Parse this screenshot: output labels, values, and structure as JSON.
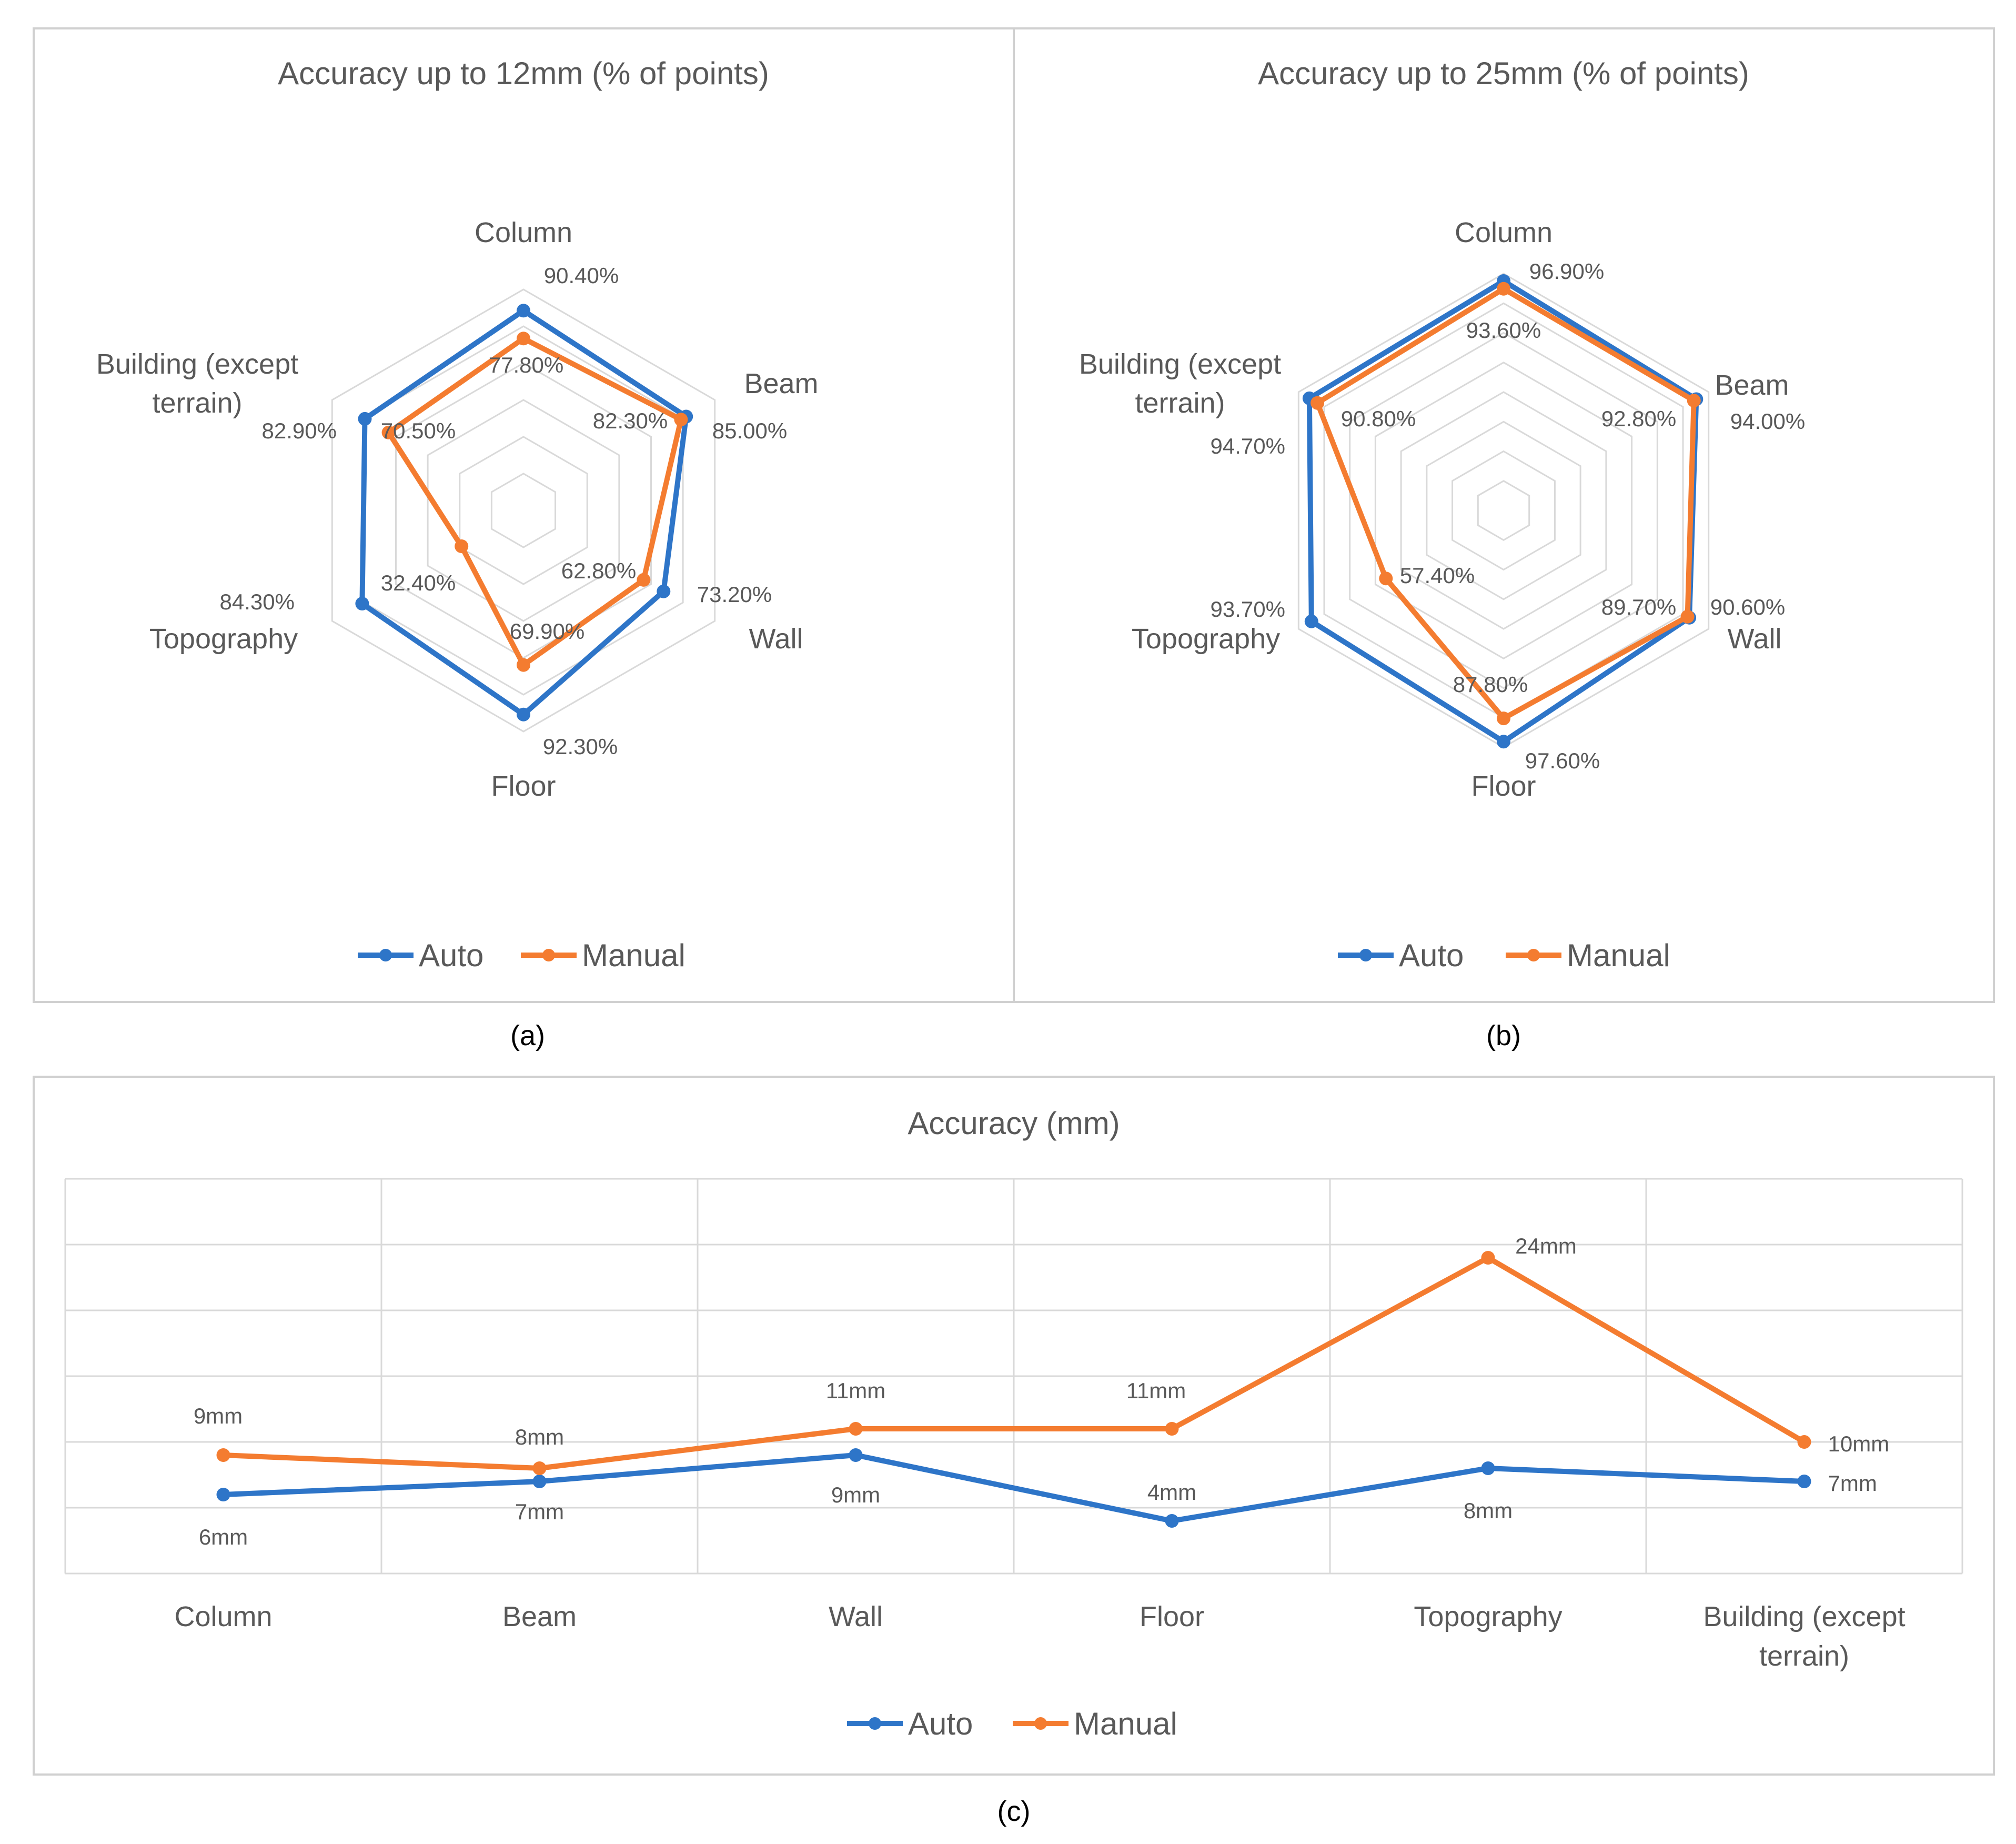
{
  "colors": {
    "auto": "#2E75C8",
    "manual": "#F47C30",
    "grid": "#D9D9D9",
    "frame": "#D0D0D0",
    "text": "#595959",
    "caption": "#000000"
  },
  "chart_data": [
    {
      "id": "a",
      "type": "radar",
      "title": "Accuracy up to 12mm (% of points)",
      "caption": "(a)",
      "categories": [
        "Column",
        "Beam",
        "Wall",
        "Floor",
        "Topography",
        "Building (except terrain)"
      ],
      "category_lines": [
        [
          "Column"
        ],
        [
          "Beam"
        ],
        [
          "Wall"
        ],
        [
          "Floor"
        ],
        [
          "Topography"
        ],
        [
          "Building (except",
          "terrain)"
        ]
      ],
      "rmin": 0,
      "rmax": 100,
      "grid_rings": 6,
      "legend_position": "bottom",
      "series": [
        {
          "name": "Auto",
          "values": [
            90.4,
            85.0,
            73.2,
            92.3,
            84.3,
            82.9
          ],
          "labels": [
            "90.40%",
            "85.00%",
            "73.20%",
            "92.30%",
            "84.30%",
            "82.90%"
          ]
        },
        {
          "name": "Manual",
          "values": [
            77.8,
            82.3,
            62.8,
            69.9,
            32.4,
            70.5
          ],
          "labels": [
            "77.80%",
            "82.30%",
            "62.80%",
            "69.90%",
            "32.40%",
            "70.50%"
          ]
        }
      ]
    },
    {
      "id": "b",
      "type": "radar",
      "title": "Accuracy up to 25mm (% of points)",
      "caption": "(b)",
      "categories": [
        "Column",
        "Beam",
        "Wall",
        "Floor",
        "Topography",
        "Building (except terrain)"
      ],
      "category_lines": [
        [
          "Column"
        ],
        [
          "Beam"
        ],
        [
          "Wall"
        ],
        [
          "Floor"
        ],
        [
          "Topography"
        ],
        [
          "Building (except",
          "terrain)"
        ]
      ],
      "rmin": 0,
      "rmax": 100,
      "grid_rings": 8,
      "legend_position": "bottom",
      "series": [
        {
          "name": "Auto",
          "values": [
            96.9,
            94.0,
            90.6,
            97.6,
            93.7,
            94.7
          ],
          "labels": [
            "96.90%",
            "94.00%",
            "90.60%",
            "97.60%",
            "93.70%",
            "94.70%"
          ]
        },
        {
          "name": "Manual",
          "values": [
            93.6,
            92.8,
            89.7,
            87.8,
            57.4,
            90.8
          ],
          "labels": [
            "93.60%",
            "92.80%",
            "89.70%",
            "87.80%",
            "57.40%",
            "90.80%"
          ]
        }
      ]
    },
    {
      "id": "c",
      "type": "line",
      "title": "Accuracy (mm)",
      "caption": "(c)",
      "categories": [
        "Column",
        "Beam",
        "Wall",
        "Floor",
        "Topography",
        "Building (except terrain)"
      ],
      "category_lines": [
        [
          "Column"
        ],
        [
          "Beam"
        ],
        [
          "Wall"
        ],
        [
          "Floor"
        ],
        [
          "Topography"
        ],
        [
          "Building (except",
          "terrain)"
        ]
      ],
      "ylim": [
        0,
        30
      ],
      "grid": true,
      "legend_position": "bottom",
      "series": [
        {
          "name": "Auto",
          "values": [
            6,
            7,
            9,
            4,
            8,
            7
          ],
          "labels": [
            "6mm",
            "7mm",
            "9mm",
            "4mm",
            "8mm",
            "7mm"
          ]
        },
        {
          "name": "Manual",
          "values": [
            9,
            8,
            11,
            11,
            24,
            10
          ],
          "labels": [
            "9mm",
            "8mm",
            "11mm",
            "11mm",
            "24mm",
            "10mm"
          ]
        }
      ]
    }
  ]
}
